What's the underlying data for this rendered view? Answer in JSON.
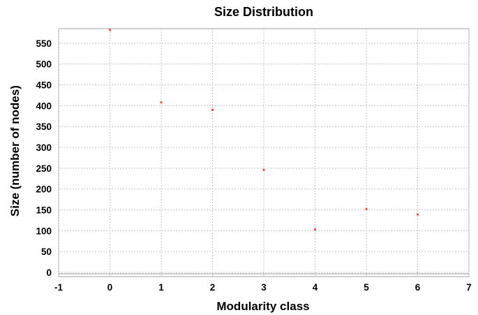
{
  "chart_data": {
    "type": "scatter",
    "title": "Size Distribution",
    "xlabel": "Modularity class",
    "ylabel": "Size (number of nodes)",
    "xlim": [
      -1,
      7
    ],
    "ylim": [
      -10,
      585
    ],
    "xticks": [
      -1,
      0,
      1,
      2,
      3,
      4,
      5,
      6,
      7
    ],
    "yticks": [
      0,
      50,
      100,
      150,
      200,
      250,
      300,
      350,
      400,
      450,
      500,
      550
    ],
    "grid": true,
    "legend": "none",
    "point_color": "#ff4d4d",
    "x": [
      0,
      1,
      2,
      3,
      4,
      5,
      6
    ],
    "y": [
      582,
      408,
      390,
      246,
      103,
      152,
      139
    ]
  }
}
